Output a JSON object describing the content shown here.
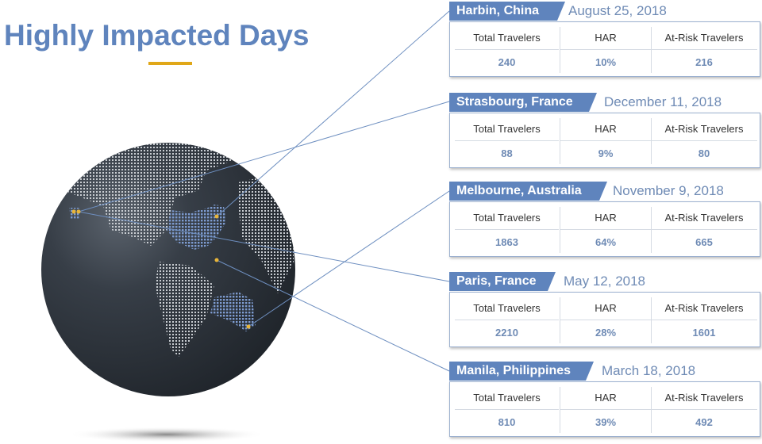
{
  "title": "Highly Impacted Days",
  "colors": {
    "accent": "#5f84bd",
    "gold": "#e0a718",
    "globe": "#2f353d"
  },
  "columns": [
    "Total Travelers",
    "HAR",
    "At-Risk Travelers"
  ],
  "cards": [
    {
      "city": "Harbin, China",
      "date": "August 25, 2018",
      "total": "240",
      "har": "10%",
      "at_risk": "216"
    },
    {
      "city": "Strasbourg, France",
      "date": "December 11, 2018",
      "total": "88",
      "har": "9%",
      "at_risk": "80"
    },
    {
      "city": "Melbourne, Australia",
      "date": "November 9, 2018",
      "total": "1863",
      "har": "64%",
      "at_risk": "665"
    },
    {
      "city": "Paris, France",
      "date": "May 12, 2018",
      "total": "2210",
      "har": "28%",
      "at_risk": "1601"
    },
    {
      "city": "Manila, Philippines",
      "date": "March 18, 2018",
      "total": "810",
      "har": "39%",
      "at_risk": "492"
    }
  ]
}
